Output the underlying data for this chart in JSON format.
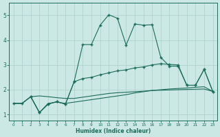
{
  "xlabel": "Humidex (Indice chaleur)",
  "bg_color": "#cce8e4",
  "line_color": "#1a6b5a",
  "grid_color": "#aacfcc",
  "xlim": [
    -0.5,
    23.5
  ],
  "ylim": [
    0.75,
    5.5
  ],
  "xticks": [
    0,
    1,
    2,
    3,
    4,
    5,
    6,
    7,
    8,
    9,
    10,
    11,
    12,
    13,
    14,
    15,
    16,
    17,
    18,
    19,
    20,
    21,
    22,
    23
  ],
  "yticks": [
    1,
    2,
    3,
    4,
    5
  ],
  "line1_x": [
    0,
    1,
    2,
    3,
    4,
    5,
    6,
    7,
    8,
    9,
    10,
    11,
    12,
    13,
    14,
    15,
    16,
    17,
    18,
    19,
    20,
    21,
    22,
    23
  ],
  "line1_y": [
    1.45,
    1.45,
    1.72,
    1.75,
    1.72,
    1.68,
    1.65,
    1.65,
    1.7,
    1.75,
    1.8,
    1.85,
    1.88,
    1.9,
    1.92,
    1.94,
    1.97,
    1.98,
    1.99,
    2.0,
    2.01,
    2.02,
    2.03,
    1.93
  ],
  "line2_x": [
    0,
    1,
    2,
    3,
    4,
    5,
    6,
    7,
    8,
    9,
    10,
    11,
    12,
    13,
    14,
    15,
    16,
    17,
    18,
    19,
    20,
    21,
    22,
    23
  ],
  "line2_y": [
    1.45,
    1.45,
    1.72,
    1.08,
    1.45,
    1.5,
    1.45,
    1.5,
    1.55,
    1.6,
    1.65,
    1.7,
    1.75,
    1.8,
    1.87,
    1.92,
    1.97,
    2.0,
    2.03,
    2.05,
    2.07,
    2.1,
    2.12,
    1.93
  ],
  "line3_x": [
    0,
    1,
    2,
    3,
    4,
    5,
    6,
    7,
    8,
    9,
    10,
    11,
    12,
    13,
    14,
    15,
    16,
    17,
    18,
    19,
    20,
    21,
    22,
    23
  ],
  "line3_y": [
    1.45,
    1.45,
    1.72,
    1.08,
    1.42,
    1.52,
    1.42,
    2.32,
    2.45,
    2.5,
    2.6,
    2.68,
    2.76,
    2.8,
    2.88,
    2.92,
    3.0,
    3.05,
    3.02,
    3.0,
    2.18,
    2.18,
    2.82,
    1.93
  ],
  "line4_x": [
    2,
    3,
    4,
    5,
    6,
    7,
    8,
    9,
    10,
    11,
    12,
    13,
    14,
    15,
    16,
    17,
    18,
    19,
    20,
    21,
    22,
    23
  ],
  "line4_y": [
    1.72,
    1.08,
    1.42,
    1.52,
    1.42,
    2.32,
    3.82,
    3.82,
    4.6,
    5.02,
    4.88,
    3.8,
    4.65,
    4.6,
    4.62,
    3.3,
    2.95,
    2.95,
    2.18,
    2.18,
    2.82,
    1.93
  ]
}
